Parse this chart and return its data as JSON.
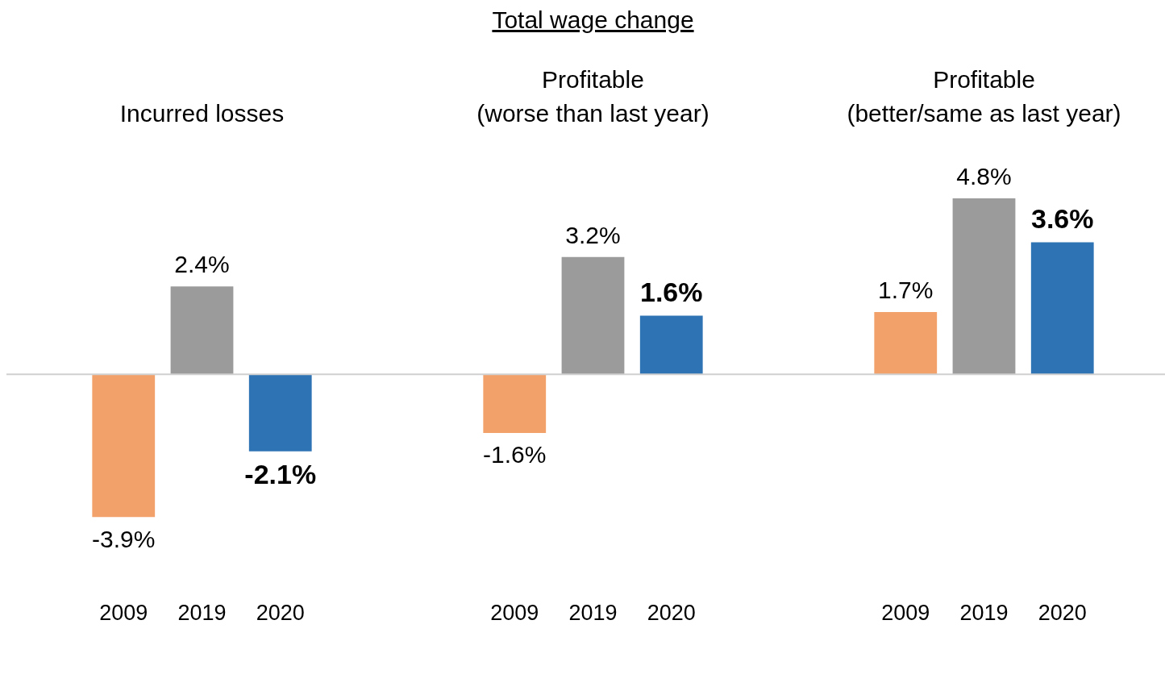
{
  "chart_data": [
    {
      "type": "bar",
      "title": "Incurred losses",
      "annotations": [
        "Total wage change"
      ],
      "categories": [
        "2009",
        "2019",
        "2020"
      ],
      "values": [
        -3.9,
        2.4,
        -2.1
      ],
      "colors": [
        "#f2a16a",
        "#9b9b9b",
        "#2e74b5"
      ],
      "value_labels": [
        "-3.9%",
        "2.4%",
        "-2.1%"
      ]
    },
    {
      "type": "bar",
      "title": "Profitable\n(worse than last year)",
      "categories": [
        "2009",
        "2019",
        "2020"
      ],
      "values": [
        -1.6,
        3.2,
        1.6
      ],
      "colors": [
        "#f2a16a",
        "#9b9b9b",
        "#2e74b5"
      ],
      "value_labels": [
        "-1.6%",
        "3.2%",
        "1.6%"
      ]
    },
    {
      "type": "bar",
      "title": "Profitable\n(better/same as last year)",
      "categories": [
        "2009",
        "2019",
        "2020"
      ],
      "values": [
        1.7,
        4.8,
        3.6
      ],
      "colors": [
        "#f2a16a",
        "#9b9b9b",
        "#2e74b5"
      ],
      "value_labels": [
        "1.7%",
        "4.8%",
        "3.6%"
      ]
    }
  ]
}
